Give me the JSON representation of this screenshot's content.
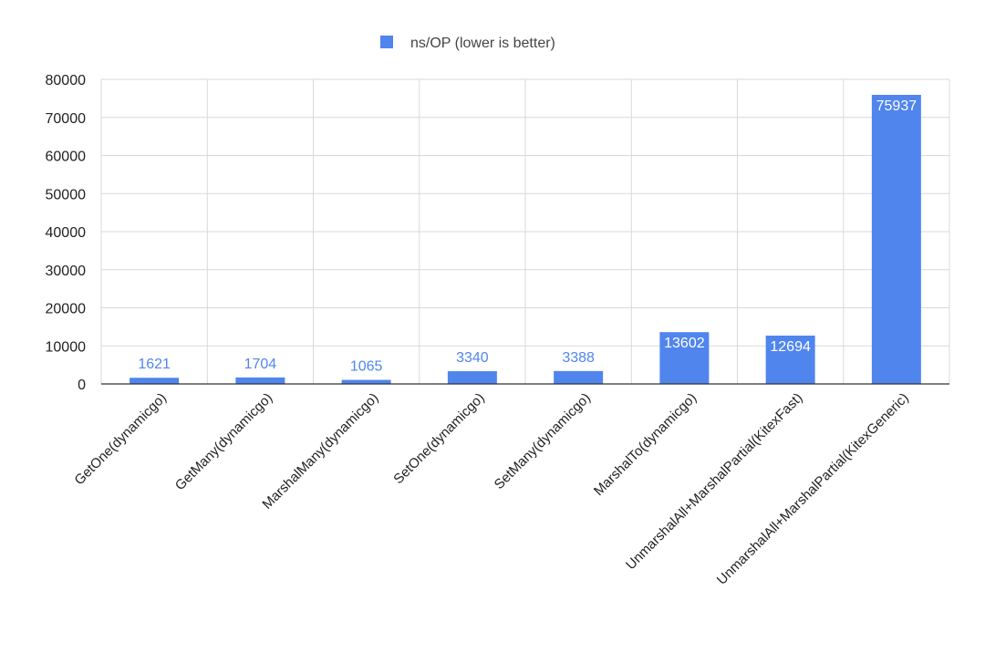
{
  "chart_data": {
    "type": "bar",
    "title": "",
    "xlabel": "",
    "ylabel": "",
    "categories": [
      "GetOne(dynamicgo)",
      "GetMany(dynamicgo)",
      "MarshalMany(dynamicgo)",
      "SetOne(dynamicgo)",
      "SetMany(dynamicgo)",
      "MarshalTo(dynamicgo)",
      "UnmarshalAll+MarshalPartial(KitexFast)",
      "UnmarshalAll+MarshalPartial(KitexGeneric)"
    ],
    "series": [
      {
        "name": "ns/OP (lower is better)",
        "values": [
          1621,
          1704,
          1065,
          3340,
          3388,
          13602,
          12694,
          75937
        ]
      }
    ],
    "ylim": [
      0,
      80000
    ],
    "yticks": [
      0,
      10000,
      20000,
      30000,
      40000,
      50000,
      60000,
      70000,
      80000
    ],
    "grid": true,
    "legend": "top-center",
    "bar_color": "#5085EE",
    "label_color_outside": "#5085EE",
    "label_color_inside": "#FFFFFF"
  }
}
